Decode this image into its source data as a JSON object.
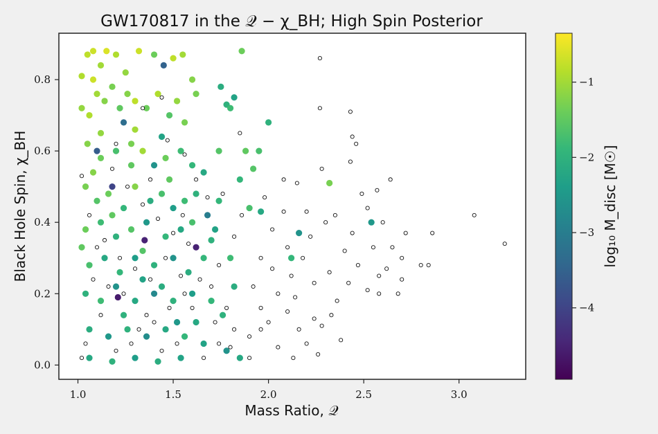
{
  "chart_data": {
    "type": "scatter",
    "title": "GW170817 in the 𝒬 − χ_BH; High Spin Posterior",
    "xlabel": "Mass Ratio, 𝒬",
    "ylabel": "Black Hole Spin, χ_BH",
    "xlim": [
      0.9,
      3.35
    ],
    "ylim": [
      -0.04,
      0.93
    ],
    "xticks": [
      1.0,
      1.5,
      2.0,
      2.5,
      3.0
    ],
    "xtick_labels": [
      "1.0",
      "1.5",
      "2.0",
      "2.5",
      "3.0"
    ],
    "yticks": [
      0.0,
      0.2,
      0.4,
      0.6,
      0.8
    ],
    "ytick_labels": [
      "0.0",
      "0.2",
      "0.4",
      "0.6",
      "0.8"
    ],
    "grid": false,
    "colorbar": {
      "label": "log₁₀ M_disc [M☉]",
      "colormap": "viridis",
      "range": [
        -4.95,
        -0.35
      ],
      "ticks": [
        -4,
        -3,
        -2,
        -1
      ],
      "tick_labels": [
        "−4",
        "−3",
        "−2",
        "−1"
      ],
      "colors": [
        "#440154",
        "#482878",
        "#3e4989",
        "#31688e",
        "#26828e",
        "#1f9e89",
        "#35b779",
        "#6ece58",
        "#b5de2b",
        "#fde725"
      ]
    },
    "series": [
      {
        "marker": "filled circle colored by log10 M_disc",
        "points": [
          [
            1.02,
            0.81,
            -0.9
          ],
          [
            1.05,
            0.87,
            -0.8
          ],
          [
            1.08,
            0.88,
            -0.7
          ],
          [
            1.12,
            0.84,
            -1.0
          ],
          [
            1.15,
            0.88,
            -0.6
          ],
          [
            1.2,
            0.87,
            -0.9
          ],
          [
            1.25,
            0.82,
            -1.1
          ],
          [
            1.32,
            0.88,
            -0.7
          ],
          [
            1.4,
            0.87,
            -1.4
          ],
          [
            1.45,
            0.84,
            -3.5
          ],
          [
            1.5,
            0.86,
            -0.8
          ],
          [
            1.55,
            0.87,
            -1.0
          ],
          [
            1.6,
            0.8,
            -1.2
          ],
          [
            1.62,
            0.76,
            -1.3
          ],
          [
            1.75,
            0.78,
            -2.1
          ],
          [
            1.82,
            0.75,
            -2.3
          ],
          [
            1.86,
            0.88,
            -1.4
          ],
          [
            1.78,
            0.73,
            -2.0
          ],
          [
            1.8,
            0.72,
            -1.8
          ],
          [
            1.74,
            0.6,
            -1.6
          ],
          [
            1.88,
            0.6,
            -1.5
          ],
          [
            2.0,
            0.68,
            -2.0
          ],
          [
            1.95,
            0.6,
            -1.7
          ],
          [
            1.92,
            0.55,
            -1.6
          ],
          [
            1.85,
            0.52,
            -1.9
          ],
          [
            1.9,
            0.44,
            -1.7
          ],
          [
            1.96,
            0.43,
            -2.2
          ],
          [
            2.32,
            0.51,
            -1.3
          ],
          [
            2.54,
            0.4,
            -2.5
          ],
          [
            2.16,
            0.37,
            -2.6
          ],
          [
            2.12,
            0.3,
            -1.9
          ],
          [
            1.8,
            0.3,
            -1.8
          ],
          [
            1.7,
            0.35,
            -2.0
          ],
          [
            1.68,
            0.42,
            -3.0
          ],
          [
            1.62,
            0.33,
            -4.5
          ],
          [
            1.35,
            0.35,
            -4.5
          ],
          [
            1.21,
            0.19,
            -4.6
          ],
          [
            1.18,
            0.5,
            -4.0
          ],
          [
            1.1,
            0.6,
            -3.6
          ],
          [
            1.24,
            0.68,
            -3.3
          ],
          [
            1.3,
            0.66,
            -1.0
          ],
          [
            1.02,
            0.72,
            -1.1
          ],
          [
            1.06,
            0.7,
            -0.9
          ],
          [
            1.1,
            0.76,
            -1.0
          ],
          [
            1.14,
            0.74,
            -1.2
          ],
          [
            1.18,
            0.78,
            -1.3
          ],
          [
            1.22,
            0.72,
            -1.5
          ],
          [
            1.26,
            0.76,
            -1.2
          ],
          [
            1.3,
            0.74,
            -0.8
          ],
          [
            1.36,
            0.72,
            -1.4
          ],
          [
            1.42,
            0.76,
            -0.9
          ],
          [
            1.48,
            0.7,
            -1.6
          ],
          [
            1.52,
            0.74,
            -1.1
          ],
          [
            1.56,
            0.68,
            -1.3
          ],
          [
            1.44,
            0.64,
            -2.3
          ],
          [
            1.05,
            0.62,
            -1.2
          ],
          [
            1.12,
            0.58,
            -1.4
          ],
          [
            1.2,
            0.6,
            -1.7
          ],
          [
            1.28,
            0.56,
            -1.5
          ],
          [
            1.34,
            0.6,
            -1.0
          ],
          [
            1.4,
            0.56,
            -2.6
          ],
          [
            1.46,
            0.58,
            -1.4
          ],
          [
            1.54,
            0.6,
            -1.8
          ],
          [
            1.6,
            0.56,
            -1.9
          ],
          [
            1.66,
            0.54,
            -2.2
          ],
          [
            1.04,
            0.5,
            -1.3
          ],
          [
            1.1,
            0.46,
            -1.6
          ],
          [
            1.16,
            0.48,
            -1.4
          ],
          [
            1.24,
            0.44,
            -1.9
          ],
          [
            1.3,
            0.5,
            -1.2
          ],
          [
            1.38,
            0.46,
            -2.1
          ],
          [
            1.44,
            0.48,
            -1.7
          ],
          [
            1.5,
            0.44,
            -2.4
          ],
          [
            1.56,
            0.46,
            -1.8
          ],
          [
            1.62,
            0.48,
            -2.0
          ],
          [
            1.74,
            0.46,
            -1.9
          ],
          [
            1.04,
            0.38,
            -1.4
          ],
          [
            1.12,
            0.4,
            -1.8
          ],
          [
            1.2,
            0.36,
            -2.0
          ],
          [
            1.28,
            0.38,
            -1.6
          ],
          [
            1.36,
            0.4,
            -2.5
          ],
          [
            1.46,
            0.36,
            -1.9
          ],
          [
            1.54,
            0.38,
            -2.2
          ],
          [
            1.6,
            0.4,
            -1.7
          ],
          [
            1.72,
            0.38,
            -2.3
          ],
          [
            1.06,
            0.28,
            -1.7
          ],
          [
            1.14,
            0.3,
            -2.2
          ],
          [
            1.22,
            0.26,
            -1.9
          ],
          [
            1.3,
            0.3,
            -2.4
          ],
          [
            1.4,
            0.28,
            -2.0
          ],
          [
            1.5,
            0.3,
            -2.6
          ],
          [
            1.58,
            0.26,
            -2.1
          ],
          [
            1.66,
            0.3,
            -1.9
          ],
          [
            1.04,
            0.2,
            -2.0
          ],
          [
            1.12,
            0.18,
            -1.8
          ],
          [
            1.2,
            0.22,
            -2.6
          ],
          [
            1.3,
            0.18,
            -2.2
          ],
          [
            1.4,
            0.2,
            -2.8
          ],
          [
            1.5,
            0.18,
            -2.0
          ],
          [
            1.6,
            0.2,
            -2.4
          ],
          [
            1.7,
            0.18,
            -1.9
          ],
          [
            1.06,
            0.1,
            -2.1
          ],
          [
            1.16,
            0.08,
            -2.5
          ],
          [
            1.26,
            0.1,
            -2.0
          ],
          [
            1.36,
            0.08,
            -2.7
          ],
          [
            1.46,
            0.1,
            -2.2
          ],
          [
            1.56,
            0.08,
            -1.9
          ],
          [
            1.66,
            0.06,
            -2.3
          ],
          [
            1.78,
            0.04,
            -2.6
          ],
          [
            1.06,
            0.02,
            -2.2
          ],
          [
            1.18,
            0.01,
            -2.0
          ],
          [
            1.3,
            0.02,
            -2.4
          ],
          [
            1.42,
            0.01,
            -2.1
          ],
          [
            1.54,
            0.02,
            -2.3
          ],
          [
            1.85,
            0.02,
            -2.2
          ],
          [
            1.76,
            0.14,
            -2.0
          ],
          [
            1.82,
            0.22,
            -2.1
          ],
          [
            1.12,
            0.65,
            -1.1
          ],
          [
            1.28,
            0.62,
            -1.3
          ],
          [
            1.48,
            0.52,
            -1.5
          ],
          [
            1.08,
            0.54,
            -1.2
          ],
          [
            1.18,
            0.42,
            -1.5
          ],
          [
            1.34,
            0.32,
            -1.6
          ],
          [
            1.02,
            0.33,
            -1.5
          ],
          [
            1.44,
            0.22,
            -2.1
          ],
          [
            1.24,
            0.14,
            -2.0
          ],
          [
            1.52,
            0.12,
            -2.5
          ],
          [
            1.34,
            0.24,
            -2.3
          ],
          [
            1.62,
            0.12,
            -2.2
          ],
          [
            1.08,
            0.8,
            -0.7
          ]
        ]
      },
      {
        "marker": "open white circle, black edge",
        "points": [
          [
            2.27,
            0.86
          ],
          [
            2.27,
            0.72
          ],
          [
            2.43,
            0.71
          ],
          [
            2.44,
            0.64
          ],
          [
            2.46,
            0.62
          ],
          [
            2.43,
            0.57
          ],
          [
            2.08,
            0.52
          ],
          [
            2.15,
            0.51
          ],
          [
            2.28,
            0.55
          ],
          [
            2.57,
            0.49
          ],
          [
            2.64,
            0.52
          ],
          [
            2.49,
            0.48
          ],
          [
            2.35,
            0.42
          ],
          [
            3.08,
            0.42
          ],
          [
            3.24,
            0.34
          ],
          [
            2.86,
            0.37
          ],
          [
            2.6,
            0.4
          ],
          [
            2.72,
            0.37
          ],
          [
            2.55,
            0.33
          ],
          [
            2.47,
            0.28
          ],
          [
            2.62,
            0.27
          ],
          [
            2.7,
            0.3
          ],
          [
            2.8,
            0.28
          ],
          [
            2.84,
            0.28
          ],
          [
            2.52,
            0.21
          ],
          [
            2.58,
            0.2
          ],
          [
            2.68,
            0.2
          ],
          [
            2.42,
            0.23
          ],
          [
            2.36,
            0.18
          ],
          [
            2.33,
            0.14
          ],
          [
            2.28,
            0.11
          ],
          [
            2.38,
            0.07
          ],
          [
            2.26,
            0.03
          ],
          [
            2.2,
            0.06
          ],
          [
            2.13,
            0.02
          ],
          [
            2.05,
            0.05
          ],
          [
            2.0,
            0.12
          ],
          [
            2.05,
            0.2
          ],
          [
            2.12,
            0.25
          ],
          [
            2.18,
            0.3
          ],
          [
            2.22,
            0.36
          ],
          [
            2.3,
            0.4
          ],
          [
            2.02,
            0.38
          ],
          [
            2.08,
            0.43
          ],
          [
            2.2,
            0.43
          ],
          [
            1.96,
            0.3
          ],
          [
            1.92,
            0.22
          ],
          [
            1.96,
            0.16
          ],
          [
            1.9,
            0.08
          ],
          [
            2.1,
            0.15
          ],
          [
            2.16,
            0.1
          ],
          [
            2.24,
            0.23
          ],
          [
            2.4,
            0.32
          ],
          [
            2.58,
            0.25
          ],
          [
            2.7,
            0.24
          ],
          [
            2.65,
            0.33
          ],
          [
            1.2,
            0.62
          ],
          [
            1.38,
            0.52
          ],
          [
            1.55,
            0.42
          ],
          [
            1.68,
            0.47
          ],
          [
            1.76,
            0.48
          ],
          [
            1.86,
            0.42
          ],
          [
            1.82,
            0.36
          ],
          [
            1.74,
            0.28
          ],
          [
            1.7,
            0.22
          ],
          [
            1.78,
            0.16
          ],
          [
            1.82,
            0.1
          ],
          [
            1.74,
            0.06
          ],
          [
            1.66,
            0.02
          ],
          [
            1.02,
            0.53
          ],
          [
            1.06,
            0.42
          ],
          [
            1.14,
            0.35
          ],
          [
            1.22,
            0.3
          ],
          [
            1.3,
            0.27
          ],
          [
            1.38,
            0.24
          ],
          [
            1.46,
            0.3
          ],
          [
            1.54,
            0.25
          ],
          [
            1.6,
            0.16
          ],
          [
            1.52,
            0.06
          ],
          [
            1.44,
            0.04
          ],
          [
            1.36,
            0.14
          ],
          [
            1.28,
            0.06
          ],
          [
            1.2,
            0.04
          ],
          [
            1.12,
            0.14
          ],
          [
            1.04,
            0.06
          ],
          [
            1.02,
            0.02
          ],
          [
            1.08,
            0.24
          ],
          [
            1.16,
            0.22
          ],
          [
            1.24,
            0.2
          ],
          [
            1.32,
            0.1
          ],
          [
            1.4,
            0.12
          ],
          [
            1.48,
            0.16
          ],
          [
            1.56,
            0.2
          ],
          [
            1.64,
            0.24
          ],
          [
            1.72,
            0.12
          ],
          [
            1.58,
            0.34
          ],
          [
            1.5,
            0.37
          ],
          [
            1.42,
            0.41
          ],
          [
            1.34,
            0.45
          ],
          [
            1.26,
            0.5
          ],
          [
            1.18,
            0.55
          ],
          [
            1.1,
            0.33
          ],
          [
            1.44,
            0.75
          ],
          [
            1.34,
            0.72
          ],
          [
            1.47,
            0.63
          ],
          [
            1.56,
            0.59
          ],
          [
            1.62,
            0.52
          ],
          [
            1.85,
            0.65
          ],
          [
            1.98,
            0.47
          ],
          [
            2.1,
            0.33
          ],
          [
            1.8,
            0.05
          ],
          [
            1.9,
            0.02
          ],
          [
            1.96,
            0.1
          ],
          [
            2.02,
            0.27
          ],
          [
            2.14,
            0.19
          ],
          [
            2.24,
            0.13
          ],
          [
            2.32,
            0.26
          ],
          [
            2.44,
            0.37
          ],
          [
            2.52,
            0.44
          ]
        ]
      }
    ]
  }
}
